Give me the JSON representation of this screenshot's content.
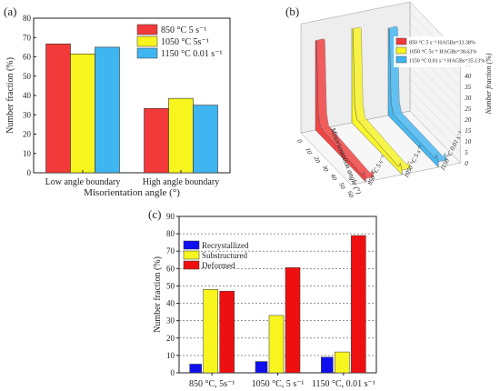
{
  "panels": {
    "a": {
      "label": "(a)"
    },
    "b": {
      "label": "(b)"
    },
    "c": {
      "label": "(c)"
    }
  },
  "colors": {
    "red": "#f23a3a",
    "yellow": "#f8f41e",
    "blue": "#3fb5f2",
    "navy": "#1010ee",
    "red_c": "#ee1010"
  },
  "chart_data": [
    {
      "panel": "a",
      "type": "bar",
      "xlabel": "Misorientation angle (°)",
      "ylabel": "Number fraction (%)",
      "ylim": [
        0,
        80
      ],
      "yticks": [
        0,
        10,
        20,
        30,
        40,
        50,
        60,
        70,
        80
      ],
      "categories": [
        "Low angle boundary",
        "High angle boundary"
      ],
      "series": [
        {
          "name": "850 °C 5 s⁻¹",
          "values": [
            66.7,
            33.3
          ],
          "color": "#f23a3a"
        },
        {
          "name": "1050 °C 5s⁻¹",
          "values": [
            61.5,
            38.5
          ],
          "color": "#f8f41e"
        },
        {
          "name": "1150 °C 0.01 s⁻¹",
          "values": [
            65.0,
            35.0
          ],
          "color": "#3fb5f2"
        }
      ],
      "legend": "top-right",
      "grid": false
    },
    {
      "panel": "b",
      "type": "area",
      "xlabel": "Misorientation angle (°)",
      "ylabel": "Number fraction (%)",
      "xticks": [
        0,
        10,
        20,
        30,
        40,
        50,
        60
      ],
      "zticks": [
        0,
        5,
        10,
        15,
        20,
        25,
        30,
        35,
        40,
        45,
        50
      ],
      "zlim": [
        0,
        50
      ],
      "series": [
        {
          "name": "850 °C 5 s⁻¹",
          "legend": "850 °C 5 s⁻¹ HAGBs=33.38%",
          "color": "#f23a3a",
          "peak": 41,
          "tail": 3.5,
          "end": 1.5
        },
        {
          "name": "1050 °C 5 s⁻¹",
          "legend": "1050 °C 5s⁻¹ HAGBs=38.63%",
          "color": "#f8f41e",
          "peak": 43,
          "tail": 4,
          "end": 2
        },
        {
          "name": "1150 °C 0.01 s⁻¹",
          "legend": "1150 °C 0.01 s⁻¹ HAGBs=35.13%",
          "color": "#3fb5f2",
          "peak": 40,
          "tail": 3,
          "end": 2.5
        }
      ],
      "legend_pos": "top-right"
    },
    {
      "panel": "c",
      "type": "bar",
      "ylabel": "Number fraction (%)",
      "ylim": [
        0,
        90
      ],
      "yticks": [
        0,
        10,
        20,
        30,
        40,
        50,
        60,
        70,
        80,
        90
      ],
      "categories": [
        "850 °C, 5s⁻¹",
        "1050 °C, 5 s⁻¹",
        "1150 °C, 0.01 s⁻¹"
      ],
      "series": [
        {
          "name": "Recrystallized",
          "values": [
            5,
            6.5,
            9
          ],
          "color": "#1010ee"
        },
        {
          "name": "Substructured",
          "values": [
            48,
            33,
            12
          ],
          "color": "#f8f41e"
        },
        {
          "name": "Deformed",
          "values": [
            47,
            60.5,
            79
          ],
          "color": "#ee1010"
        }
      ],
      "legend": "top-left",
      "grid": true
    }
  ]
}
